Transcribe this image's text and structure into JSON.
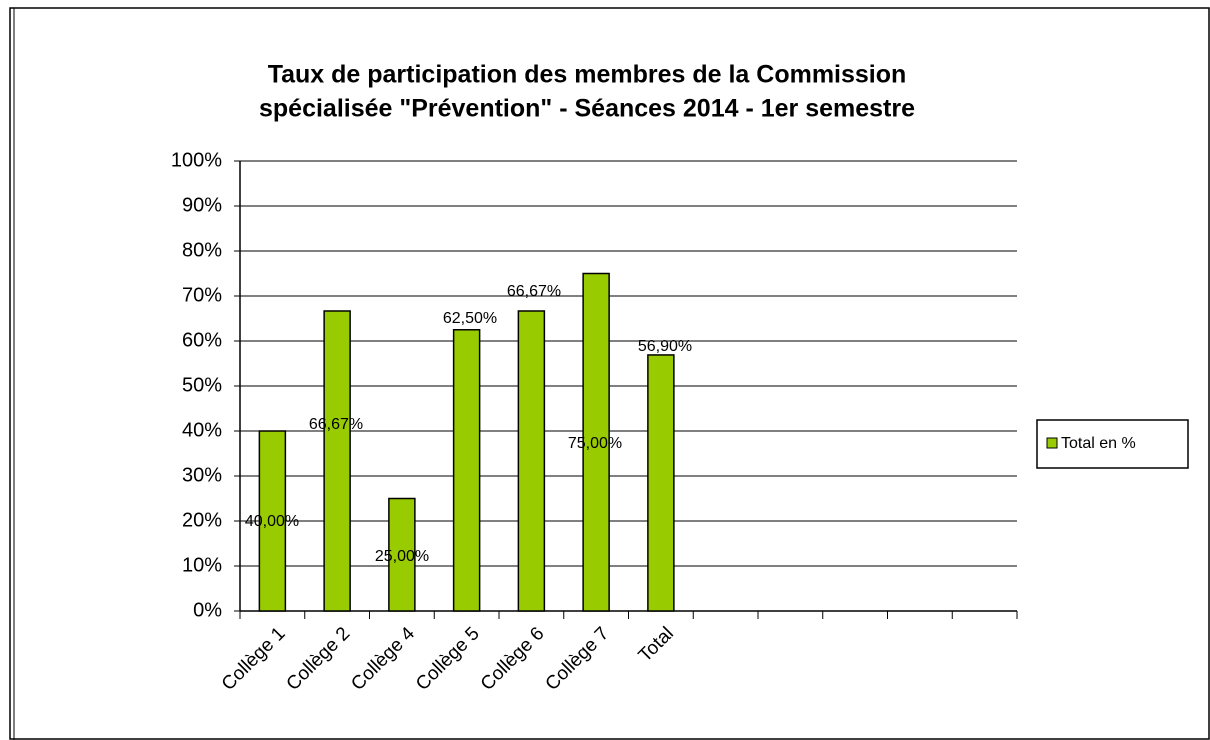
{
  "chart_data": {
    "type": "bar",
    "title": [
      "Taux de participation des membres de la Commission",
      "spécialisée \"Prévention\" - Séances 2014 - 1er semestre"
    ],
    "categories": [
      "Collège 1",
      "Collège 2",
      "Collège 4",
      "Collège 5",
      "Collège 6",
      "Collège 7",
      "Total",
      null,
      null,
      null,
      null,
      null
    ],
    "series": [
      {
        "name": "Total en %",
        "color": "#99cc00",
        "values": [
          40,
          66.67,
          25,
          62.5,
          66.67,
          75,
          56.9,
          null,
          null,
          null,
          null,
          null
        ],
        "value_labels": [
          "40,00%",
          "66,67%",
          "25,00%",
          "62,50%",
          "66,67%",
          "75,00%",
          "56,90%",
          null,
          null,
          null,
          null,
          null
        ]
      }
    ],
    "ylim": [
      0,
      100
    ],
    "yticks": [
      {
        "value": 0,
        "label": "0%"
      },
      {
        "value": 10,
        "label": "10%"
      },
      {
        "value": 20,
        "label": "20%"
      },
      {
        "value": 30,
        "label": "30%"
      },
      {
        "value": 40,
        "label": "40%"
      },
      {
        "value": 50,
        "label": "50%"
      },
      {
        "value": 60,
        "label": "60%"
      },
      {
        "value": 70,
        "label": "70%"
      },
      {
        "value": 80,
        "label": "80%"
      },
      {
        "value": 90,
        "label": "90%"
      },
      {
        "value": 100,
        "label": "100%"
      }
    ],
    "grid": true,
    "legend": "right"
  }
}
